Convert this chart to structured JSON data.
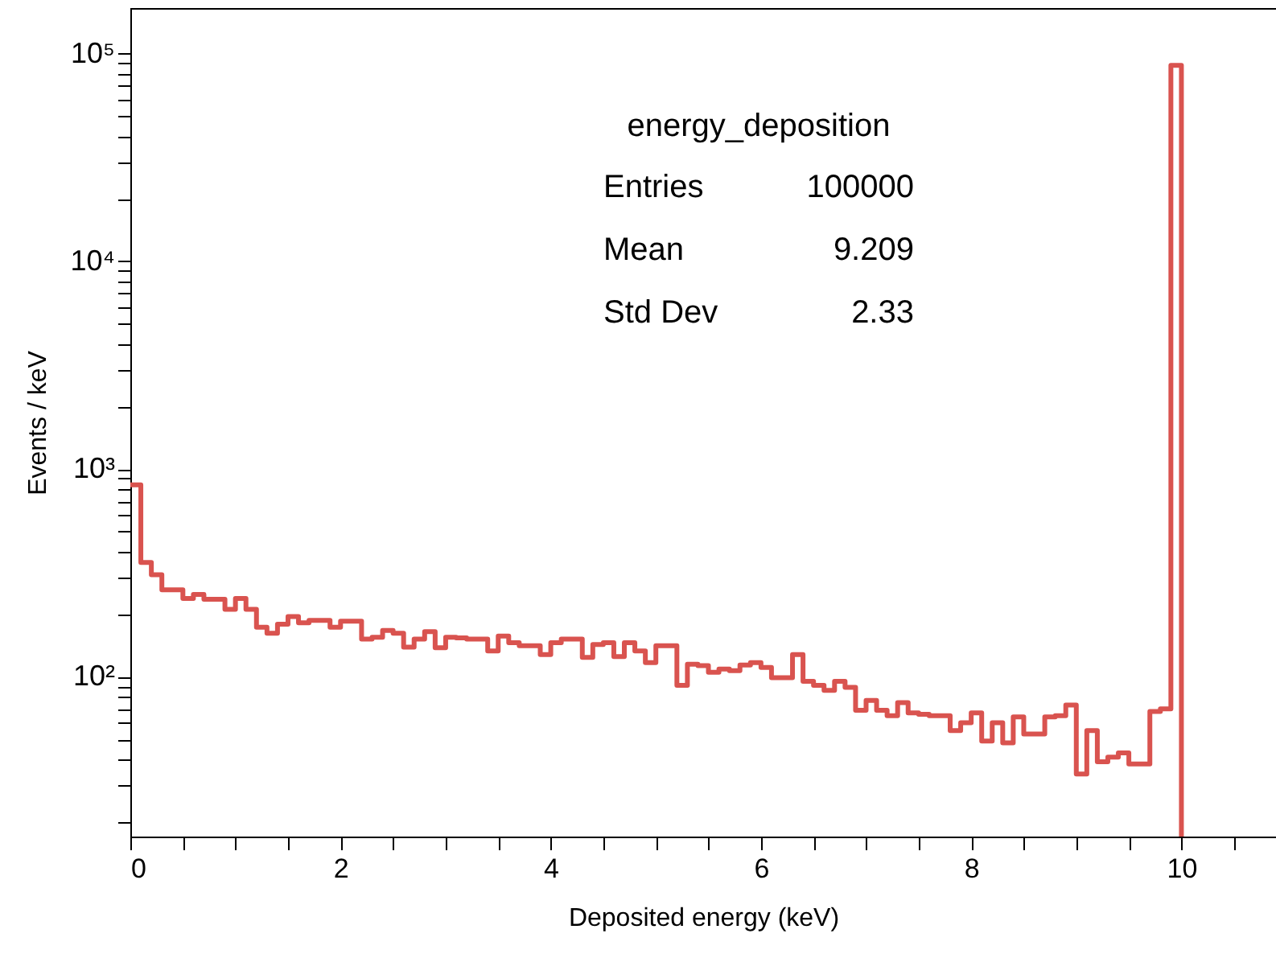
{
  "chart_data": {
    "type": "histogram",
    "xlabel": "Deposited energy (keV)",
    "ylabel": "Events / keV",
    "bins": [
      0,
      0.1,
      0.2,
      0.3,
      0.4,
      0.5,
      0.6,
      0.7,
      0.8,
      0.9,
      1.0,
      1.1,
      1.2,
      1.3,
      1.4,
      1.5,
      1.6,
      1.7,
      1.8,
      1.9,
      2.0,
      2.1,
      2.2,
      2.3,
      2.4,
      2.5,
      2.6,
      2.7,
      2.8,
      2.9,
      3.0,
      3.1,
      3.2,
      3.3,
      3.4,
      3.5,
      3.6,
      3.7,
      3.8,
      3.9,
      4.0,
      4.1,
      4.2,
      4.3,
      4.4,
      4.5,
      4.6,
      4.7,
      4.8,
      4.9,
      5.0,
      5.1,
      5.2,
      5.3,
      5.4,
      5.5,
      5.6,
      5.7,
      5.8,
      5.9,
      6.0,
      6.1,
      6.2,
      6.3,
      6.4,
      6.5,
      6.6,
      6.7,
      6.8,
      6.9,
      7.0,
      7.1,
      7.2,
      7.3,
      7.4,
      7.5,
      7.6,
      7.7,
      7.8,
      7.9,
      8.0,
      8.1,
      8.2,
      8.3,
      8.4,
      8.5,
      8.6,
      8.7,
      8.8,
      8.9,
      9.0,
      9.1,
      9.2,
      9.3,
      9.4,
      9.5,
      9.6,
      9.7,
      9.8,
      9.9,
      10.0
    ],
    "values": [
      840,
      355,
      310,
      262,
      262,
      238,
      249,
      236,
      236,
      211,
      238,
      211,
      173,
      162,
      179,
      195,
      182,
      187,
      187,
      173,
      185,
      185,
      152,
      155,
      167,
      162,
      139,
      152,
      165,
      138,
      155,
      154,
      152,
      152,
      133,
      157,
      146,
      141,
      141,
      128,
      146,
      152,
      152,
      124,
      143,
      146,
      125,
      146,
      133,
      117,
      141,
      141,
      91,
      115,
      113,
      105,
      109,
      107,
      114,
      117,
      111,
      99,
      99,
      128,
      95,
      91,
      86,
      95,
      89,
      69,
      77,
      69,
      65,
      75,
      67,
      66,
      65,
      65,
      55,
      60,
      67,
      49,
      60,
      48,
      64,
      53,
      53,
      64,
      65,
      73,
      34,
      55,
      39,
      41,
      43,
      38,
      38,
      68,
      70,
      88000
    ],
    "color": "#d9534f",
    "log": "y",
    "xlim": [
      0,
      10.9
    ],
    "xticks": [
      0,
      {
        "value": 0.5,
        "label": null
      },
      2,
      {
        "value": 1,
        "label": null
      },
      {
        "value": 1.5,
        "label": null
      },
      {
        "value": 2.5,
        "label": null
      },
      {
        "value": 3,
        "label": null
      },
      {
        "value": 3.5,
        "label": null
      },
      4,
      {
        "value": 4.5,
        "label": null
      },
      {
        "value": 5,
        "label": null
      },
      {
        "value": 5.5,
        "label": null
      },
      6,
      {
        "value": 6.5,
        "label": null
      },
      {
        "value": 7,
        "label": null
      },
      {
        "value": 7.5,
        "label": null
      },
      8,
      {
        "value": 8.5,
        "label": null
      },
      {
        "value": 9,
        "label": null
      },
      {
        "value": 9.5,
        "label": null
      },
      10,
      {
        "value": 10.5,
        "label": null
      }
    ],
    "ylim": [
      17,
      166000
    ],
    "yticks": [
      {
        "value": 20,
        "label": null
      },
      {
        "value": 30,
        "label": null
      },
      {
        "value": 40,
        "label": null
      },
      {
        "value": 50,
        "label": null
      },
      {
        "value": 60,
        "label": null
      },
      {
        "value": 70,
        "label": null
      },
      {
        "value": 80,
        "label": null
      },
      {
        "value": 90,
        "label": null
      },
      {
        "value": 100,
        "label": "10²"
      },
      {
        "value": 200,
        "label": null
      },
      {
        "value": 300,
        "label": null
      },
      {
        "value": 400,
        "label": null
      },
      {
        "value": 500,
        "label": null
      },
      {
        "value": 600,
        "label": null
      },
      {
        "value": 700,
        "label": null
      },
      {
        "value": 800,
        "label": null
      },
      {
        "value": 900,
        "label": null
      },
      {
        "value": 1000,
        "label": "10³"
      },
      {
        "value": 2000,
        "label": null
      },
      {
        "value": 3000,
        "label": null
      },
      {
        "value": 4000,
        "label": null
      },
      {
        "value": 5000,
        "label": null
      },
      {
        "value": 6000,
        "label": null
      },
      {
        "value": 7000,
        "label": null
      },
      {
        "value": 8000,
        "label": null
      },
      {
        "value": 9000,
        "label": null
      },
      {
        "value": 10000,
        "label": "10⁴"
      },
      {
        "value": 20000,
        "label": null
      },
      {
        "value": 30000,
        "label": null
      },
      {
        "value": 40000,
        "label": null
      },
      {
        "value": 50000,
        "label": null
      },
      {
        "value": 60000,
        "label": null
      },
      {
        "value": 70000,
        "label": null
      },
      {
        "value": 80000,
        "label": null
      },
      {
        "value": 90000,
        "label": null
      },
      {
        "value": 100000,
        "label": "10⁵"
      }
    ],
    "grid": false,
    "annotations": [
      "energy_deposition",
      "Entries",
      "100000",
      "Mean",
      "9.209",
      "Std Dev",
      "2.33"
    ]
  }
}
